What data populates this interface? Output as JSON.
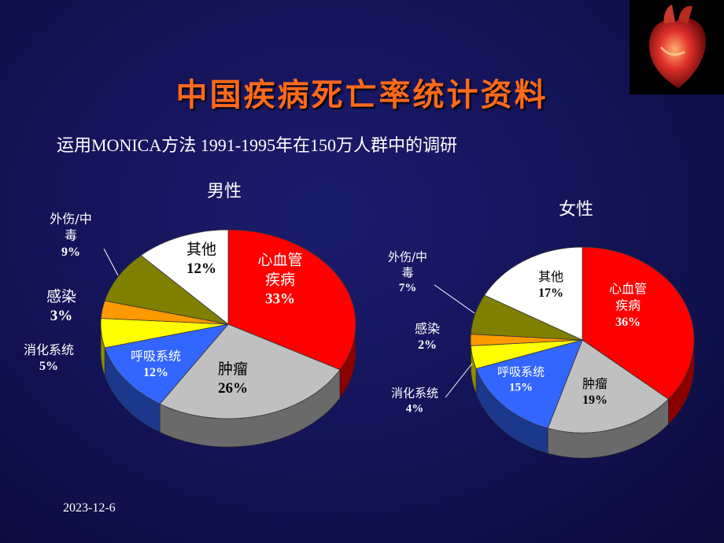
{
  "slide": {
    "title": "中国疾病死亡率统计资料",
    "subtitle": "运用MONICA方法 1991-1995年在150万人群中的调研",
    "date": "2023-12-6",
    "image_icon": "heart-illustration"
  },
  "chart_data": [
    {
      "type": "pie",
      "title": "男性",
      "slices": [
        {
          "label": [
            "心血管",
            "疾病"
          ],
          "value": 33,
          "value_label": "33%",
          "color": "#ff0000"
        },
        {
          "label": [
            "肿瘤"
          ],
          "value": 26,
          "value_label": "26%",
          "color": "#c0c0c0"
        },
        {
          "label": [
            "呼吸系统"
          ],
          "value": 12,
          "value_label": "12%",
          "color": "#3366ff"
        },
        {
          "label": [
            "消化系统"
          ],
          "value": 5,
          "value_label": "5%",
          "color": "#ffff00"
        },
        {
          "label": [
            "感染"
          ],
          "value": 3,
          "value_label": "3%",
          "color": "#ff9900"
        },
        {
          "label": [
            "外伤/中",
            "毒"
          ],
          "value": 9,
          "value_label": "9%",
          "color": "#808000"
        },
        {
          "label": [
            "其他"
          ],
          "value": 12,
          "value_label": "12%",
          "color": "#ffffff"
        }
      ]
    },
    {
      "type": "pie",
      "title": "女性",
      "slices": [
        {
          "label": [
            "心血管",
            "疾病"
          ],
          "value": 36,
          "value_label": "36%",
          "color": "#ff0000"
        },
        {
          "label": [
            "肿瘤"
          ],
          "value": 19,
          "value_label": "19%",
          "color": "#c0c0c0"
        },
        {
          "label": [
            "呼吸系统"
          ],
          "value": 15,
          "value_label": "15%",
          "color": "#3366ff"
        },
        {
          "label": [
            "消化系统"
          ],
          "value": 4,
          "value_label": "4%",
          "color": "#ffff00"
        },
        {
          "label": [
            "感染"
          ],
          "value": 2,
          "value_label": "2%",
          "color": "#ff9900"
        },
        {
          "label": [
            "外伤/中",
            "毒"
          ],
          "value": 7,
          "value_label": "7%",
          "color": "#808000"
        },
        {
          "label": [
            "其他"
          ],
          "value": 17,
          "value_label": "17%",
          "color": "#ffffff"
        }
      ]
    }
  ]
}
